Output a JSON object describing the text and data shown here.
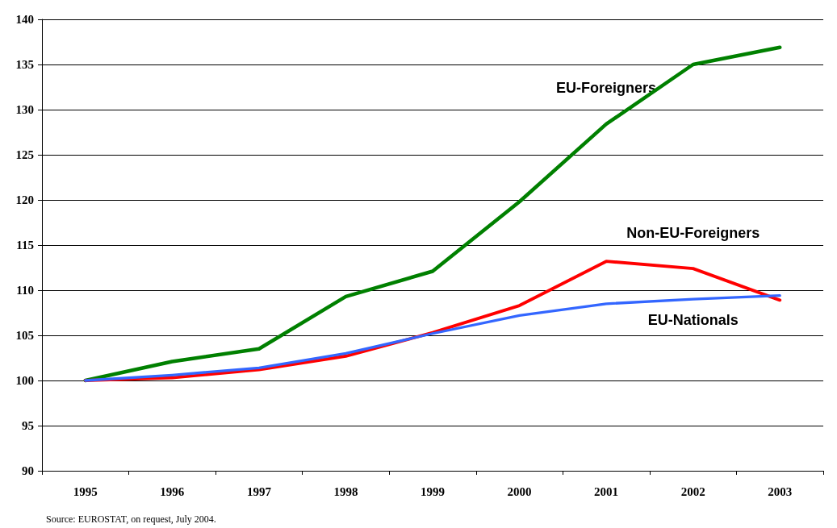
{
  "chart_data": {
    "type": "line",
    "categories": [
      "1995",
      "1996",
      "1997",
      "1998",
      "1999",
      "2000",
      "2001",
      "2002",
      "2003"
    ],
    "series": [
      {
        "name": "EU-Foreigners",
        "color": "#008000",
        "values": [
          100,
          102.1,
          103.5,
          109.3,
          112.1,
          119.8,
          128.4,
          135,
          136.9
        ]
      },
      {
        "name": "Non-EU-Foreigners",
        "color": "#ff0000",
        "values": [
          100,
          100.3,
          101.2,
          102.7,
          105.3,
          108.3,
          113.2,
          112.4,
          108.9
        ]
      },
      {
        "name": "EU-Nationals",
        "color": "#3366ff",
        "values": [
          100,
          100.6,
          101.4,
          103,
          105.2,
          107.2,
          108.5,
          109,
          109.4
        ]
      }
    ],
    "ylim": [
      90,
      140
    ],
    "yticks": [
      90,
      95,
      100,
      105,
      110,
      115,
      120,
      125,
      130,
      135,
      140
    ],
    "grid": "y",
    "legend": false,
    "marker": "none",
    "line_style": "solid",
    "annotations": [
      "Source: EUROSTAT, on request, July 2004."
    ]
  }
}
